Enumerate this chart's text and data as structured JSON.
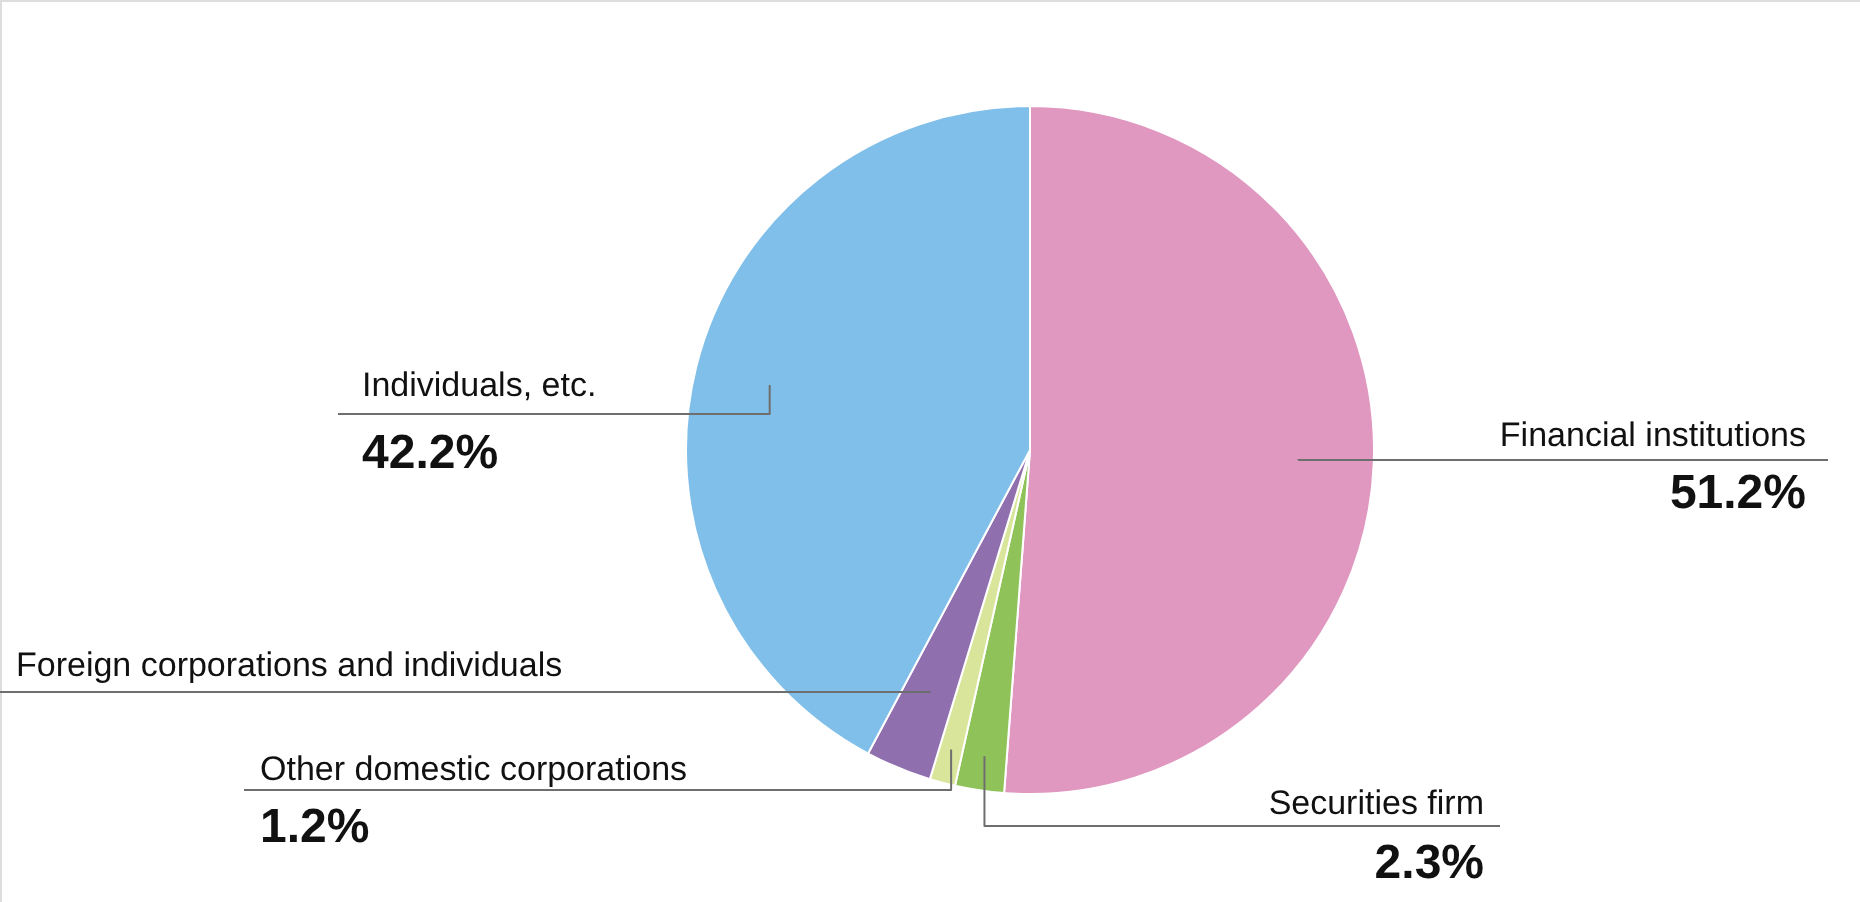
{
  "chart_data": {
    "type": "pie",
    "categories": [
      "Financial institutions",
      "Securities firm",
      "Other domestic corporations",
      "Foreign corporations and individuals",
      "Individuals, etc."
    ],
    "values": [
      51.2,
      2.3,
      1.2,
      3.1,
      42.2
    ],
    "colors": [
      "#e097c0",
      "#8fc35a",
      "#d9e59a",
      "#8f6fae",
      "#80bfe9"
    ],
    "value_labels": [
      "51.2%",
      "2.3%",
      "1.2%",
      null,
      "42.2%"
    ]
  }
}
